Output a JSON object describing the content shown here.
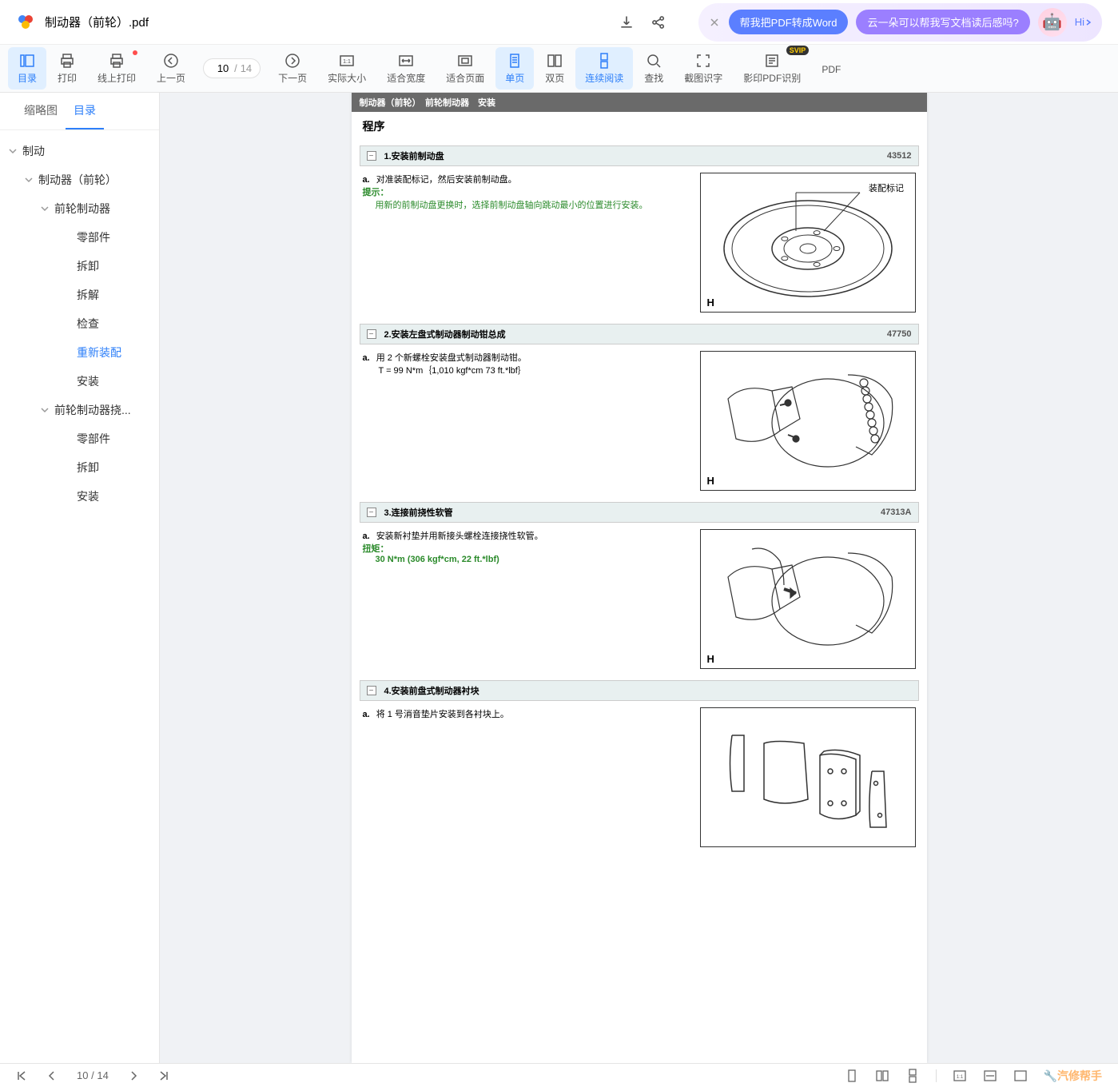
{
  "titlebar": {
    "filename": "制动器（前轮）.pdf",
    "promo_pill1": "帮我把PDF转成Word",
    "promo_pill2": "云一朵可以帮我写文档读后感吗?",
    "hi_label": "Hi"
  },
  "toolbar": {
    "catalog": "目录",
    "print": "打印",
    "online_print": "线上打印",
    "prev_page": "上一页",
    "next_page": "下一页",
    "actual_size": "实际大小",
    "fit_width": "适合宽度",
    "fit_page": "适合页面",
    "single_page": "单页",
    "double_page": "双页",
    "continuous": "连续阅读",
    "search": "查找",
    "screenshot_ocr": "截图识字",
    "scan_pdf_ocr": "影印PDF识别",
    "pdf_tools": "PDF",
    "page_current": "10",
    "page_total": "14",
    "page_sep": "/"
  },
  "sidebar": {
    "tab_thumbnail": "缩略图",
    "tab_catalog": "目录",
    "tree": [
      {
        "level": 0,
        "label": "制动",
        "expanded": true
      },
      {
        "level": 1,
        "label": "制动器（前轮）",
        "expanded": true
      },
      {
        "level": 2,
        "label": "前轮制动器",
        "expanded": true
      },
      {
        "level": 3,
        "label": "零部件"
      },
      {
        "level": 3,
        "label": "拆卸"
      },
      {
        "level": 3,
        "label": "拆解"
      },
      {
        "level": 3,
        "label": "检查"
      },
      {
        "level": 3,
        "label": "重新装配",
        "selected": true
      },
      {
        "level": 3,
        "label": "安装"
      },
      {
        "level": 2,
        "label": "前轮制动器挠...",
        "expanded": true
      },
      {
        "level": 3,
        "label": "零部件"
      },
      {
        "level": 3,
        "label": "拆卸"
      },
      {
        "level": 3,
        "label": "安装"
      }
    ]
  },
  "document": {
    "header_bar": "制动器（前轮）　前轮制动器　安装",
    "procedure_title": "程序",
    "steps": [
      {
        "num": "1.",
        "title": "安装前制动盘",
        "code": "43512",
        "item_a": "a.",
        "text_a": "对准装配标记，然后安装前制动盘。",
        "hint_label": "提示：",
        "hint_text": "用新的前制动盘更换时，选择前制动盘轴向跳动最小的位置进行安装。",
        "annotation": "装配标记",
        "corner": "H",
        "image_type": "rotor"
      },
      {
        "num": "2.",
        "title": "安装左盘式制动器制动钳总成",
        "code": "47750",
        "item_a": "a.",
        "text_a": "用 2 个新螺栓安装盘式制动器制动钳。",
        "torque_spec": "T = 99 N*m｛1,010 kgf*cm 73 ft.*lbf｝",
        "corner": "H",
        "image_type": "caliper"
      },
      {
        "num": "3.",
        "title": "连接前挠性软管",
        "code": "47313A",
        "item_a": "a.",
        "text_a": "安装新衬垫并用新接头螺栓连接挠性软管。",
        "torque_label": "扭矩：",
        "torque_value": "30 N*m (306 kgf*cm, 22 ft.*lbf)",
        "corner": "H",
        "image_type": "hose"
      },
      {
        "num": "4.",
        "title": "安装前盘式制动器衬块",
        "code": "",
        "item_a": "a.",
        "text_a": "将 1 号消音垫片安装到各衬块上。",
        "image_type": "pads"
      }
    ]
  },
  "bottombar": {
    "page_current": "10",
    "page_total": "14",
    "page_sep": "/"
  },
  "watermark": "汽修帮手",
  "colors": {
    "primary": "#2d7ff9",
    "active_bg": "#e0efff",
    "step_header_bg": "#e8f0f0",
    "page_header_bg": "#6a6a6a",
    "hint_green": "#2a8a2a"
  }
}
